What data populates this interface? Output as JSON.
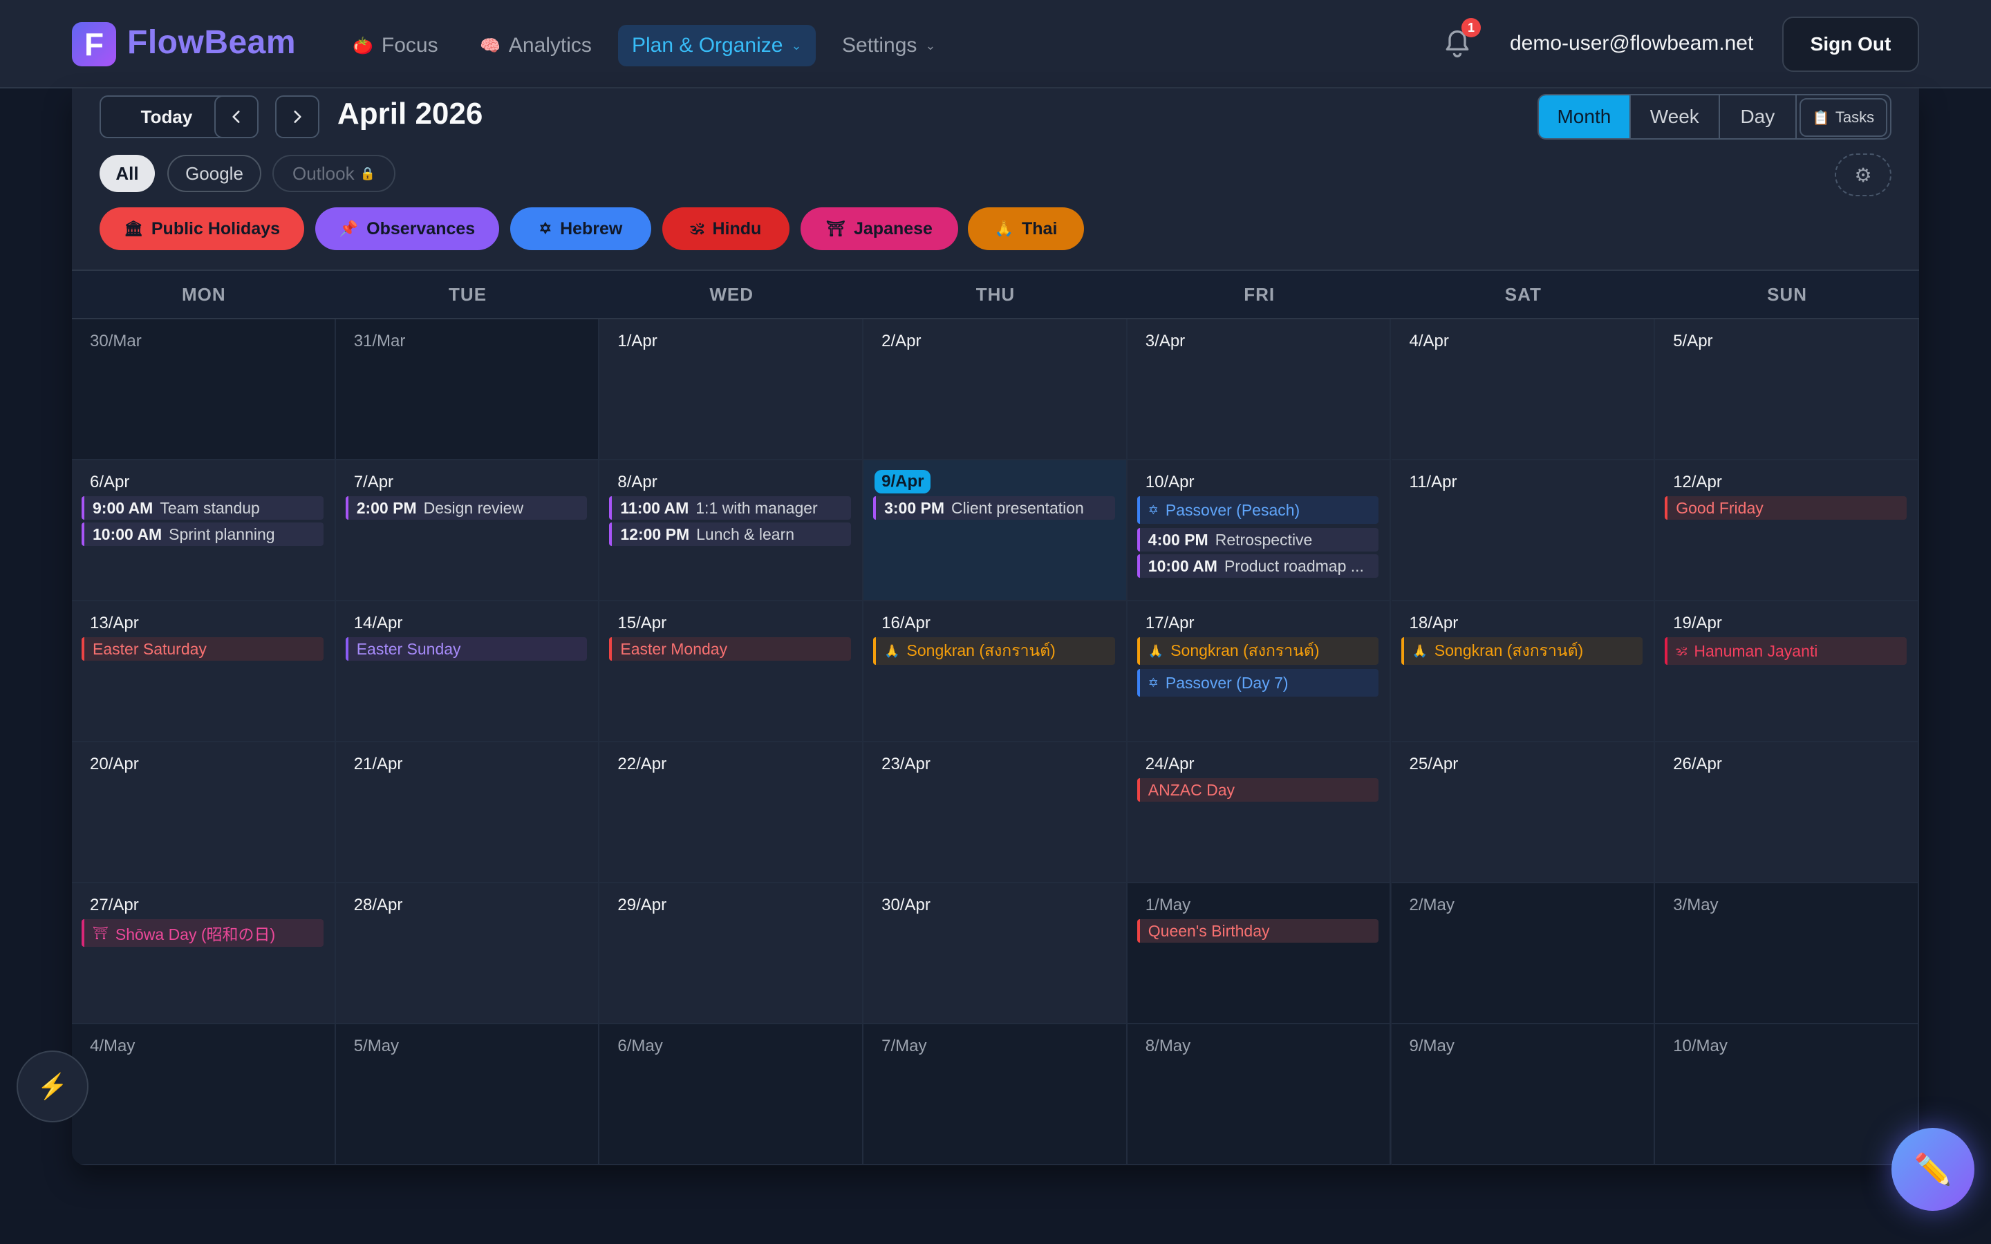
{
  "header": {
    "logo_letter": "F",
    "brand": "FlowBeam",
    "nav": [
      {
        "icon": "🍅",
        "label": "Focus"
      },
      {
        "icon": "🧠",
        "label": "Analytics"
      },
      {
        "label": "Plan & Organize",
        "active": true
      },
      {
        "label": "Settings"
      }
    ],
    "notification_count": "1",
    "user_email": "demo-user@flowbeam.net",
    "signout_label": "Sign Out"
  },
  "toolbar": {
    "today_label": "Today",
    "month_title": "April 2026",
    "views": [
      "Month",
      "Week",
      "Day"
    ],
    "active_view": "Month",
    "tasks_label": "Tasks",
    "tasks_icon": "📋"
  },
  "filters": {
    "all": "All",
    "google": "Google",
    "outlook": "Outlook",
    "outlook_lock": "🔒",
    "settings_icon": "⚙"
  },
  "categories": [
    {
      "icon": "🏛",
      "label": "Public Holidays",
      "color": "#ef4444"
    },
    {
      "icon": "📌",
      "label": "Observances",
      "color": "#8b5cf6"
    },
    {
      "icon": "✡",
      "label": "Hebrew",
      "color": "#3b82f6"
    },
    {
      "icon": "🕉",
      "label": "Hindu",
      "color": "#dc2626"
    },
    {
      "icon": "⛩",
      "label": "Japanese",
      "color": "#db2777"
    },
    {
      "icon": "🙏",
      "label": "Thai",
      "color": "#d97706"
    }
  ],
  "weekdays": [
    "MON",
    "TUE",
    "WED",
    "THU",
    "FRI",
    "SAT",
    "SUN"
  ],
  "weeks": [
    [
      {
        "label": "30/Mar",
        "other": true
      },
      {
        "label": "31/Mar",
        "other": true
      },
      {
        "label": "1/Apr"
      },
      {
        "label": "2/Apr"
      },
      {
        "label": "3/Apr"
      },
      {
        "label": "4/Apr"
      },
      {
        "label": "5/Apr"
      }
    ],
    [
      {
        "label": "6/Apr",
        "events": [
          {
            "kind": "meeting",
            "time": "9:00 AM",
            "title": "Team standup"
          },
          {
            "kind": "meeting",
            "time": "10:00 AM",
            "title": "Sprint planning"
          }
        ]
      },
      {
        "label": "7/Apr",
        "events": [
          {
            "kind": "meeting",
            "time": "2:00 PM",
            "title": "Design review"
          }
        ]
      },
      {
        "label": "8/Apr",
        "events": [
          {
            "kind": "meeting",
            "time": "11:00 AM",
            "title": "1:1 with manager"
          },
          {
            "kind": "meeting",
            "time": "12:00 PM",
            "title": "Lunch & learn"
          }
        ]
      },
      {
        "label": "9/Apr",
        "today": true,
        "events": [
          {
            "kind": "meeting",
            "time": "3:00 PM",
            "title": "Client presentation"
          }
        ]
      },
      {
        "label": "10/Apr",
        "events": [
          {
            "kind": "blue",
            "icon": "✡",
            "title": "Passover (Pesach)"
          },
          {
            "kind": "meeting",
            "time": "4:00 PM",
            "title": "Retrospective"
          },
          {
            "kind": "meeting",
            "time": "10:00 AM",
            "title": "Product roadmap ..."
          }
        ]
      },
      {
        "label": "11/Apr"
      },
      {
        "label": "12/Apr",
        "events": [
          {
            "kind": "red",
            "title": "Good Friday"
          }
        ]
      }
    ],
    [
      {
        "label": "13/Apr",
        "events": [
          {
            "kind": "red",
            "title": "Easter Saturday"
          }
        ]
      },
      {
        "label": "14/Apr",
        "events": [
          {
            "kind": "purple",
            "title": "Easter Sunday"
          }
        ]
      },
      {
        "label": "15/Apr",
        "events": [
          {
            "kind": "red",
            "title": "Easter Monday"
          }
        ]
      },
      {
        "label": "16/Apr",
        "events": [
          {
            "kind": "orange",
            "icon": "🙏",
            "title": "Songkran (สงกรานต์)"
          }
        ]
      },
      {
        "label": "17/Apr",
        "events": [
          {
            "kind": "orange",
            "icon": "🙏",
            "title": "Songkran (สงกรานต์)"
          },
          {
            "kind": "blue",
            "icon": "✡",
            "title": "Passover (Day 7)"
          }
        ]
      },
      {
        "label": "18/Apr",
        "events": [
          {
            "kind": "orange",
            "icon": "🙏",
            "title": "Songkran (สงกรานต์)"
          }
        ]
      },
      {
        "label": "19/Apr",
        "events": [
          {
            "kind": "hindu",
            "icon": "🕉",
            "title": "Hanuman Jayanti"
          }
        ]
      }
    ],
    [
      {
        "label": "20/Apr"
      },
      {
        "label": "21/Apr"
      },
      {
        "label": "22/Apr"
      },
      {
        "label": "23/Apr"
      },
      {
        "label": "24/Apr",
        "events": [
          {
            "kind": "red",
            "title": "ANZAC Day"
          }
        ]
      },
      {
        "label": "25/Apr"
      },
      {
        "label": "26/Apr"
      }
    ],
    [
      {
        "label": "27/Apr",
        "events": [
          {
            "kind": "pink",
            "icon": "⛩",
            "title": "Shōwa Day (昭和の日)"
          }
        ]
      },
      {
        "label": "28/Apr"
      },
      {
        "label": "29/Apr"
      },
      {
        "label": "30/Apr"
      },
      {
        "label": "1/May",
        "other": true,
        "events": [
          {
            "kind": "red",
            "title": "Queen's Birthday"
          }
        ]
      },
      {
        "label": "2/May",
        "other": true
      },
      {
        "label": "3/May",
        "other": true
      }
    ],
    [
      {
        "label": "4/May",
        "other": true
      },
      {
        "label": "5/May",
        "other": true
      },
      {
        "label": "6/May",
        "other": true
      },
      {
        "label": "7/May",
        "other": true
      },
      {
        "label": "8/May",
        "other": true
      },
      {
        "label": "9/May",
        "other": true
      },
      {
        "label": "10/May",
        "other": true
      }
    ]
  ],
  "floating": {
    "quick_icon": "⚡",
    "compose_icon": "✏️"
  }
}
